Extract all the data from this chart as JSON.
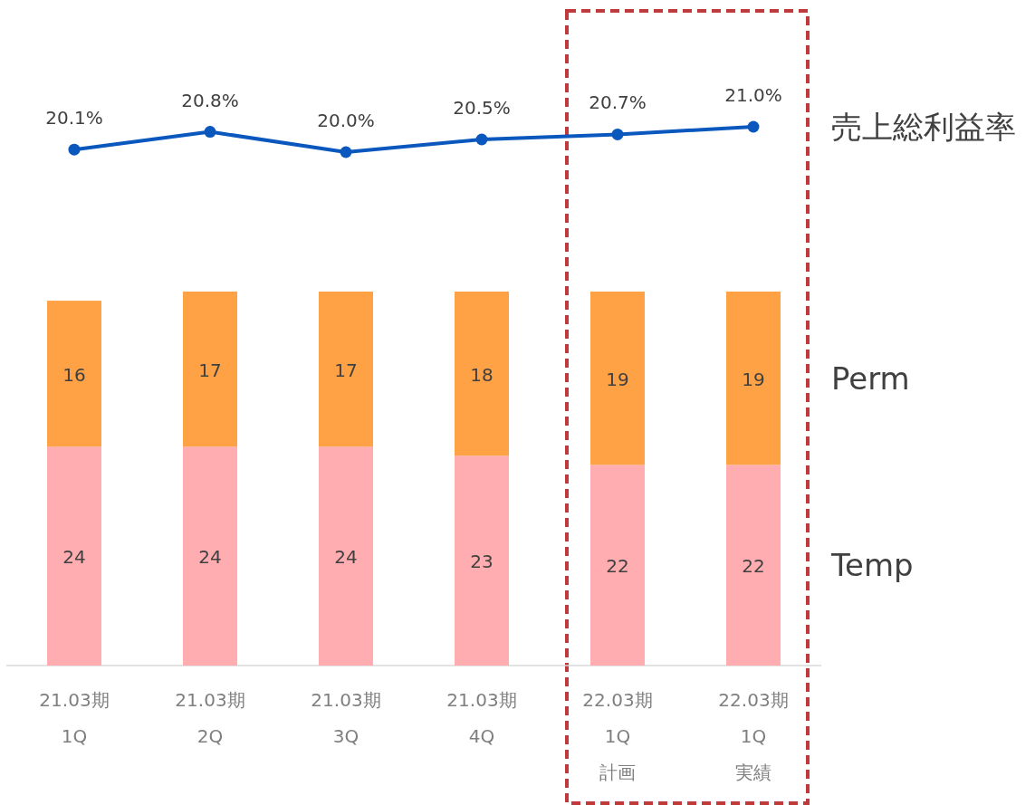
{
  "chart_data": [
    {
      "type": "line",
      "marker": "circle",
      "categories": [
        null,
        null,
        null,
        null,
        null,
        null
      ],
      "series": [
        {
          "name": "売上総利益率",
          "color": "#0a57bd",
          "values": [
            20.1,
            20.8,
            20.0,
            20.5,
            20.7,
            21.0
          ],
          "value_labels": [
            "20.1%",
            "20.8%",
            "20.0%",
            "20.5%",
            "20.7%",
            "21.0%"
          ]
        }
      ]
    },
    {
      "type": "bar",
      "stacked": true,
      "tick_labels": "x",
      "data_labels": true,
      "categories": [
        "21.03期\n1Q",
        "21.03期\n2Q",
        "21.03期\n3Q",
        "21.03期\n4Q",
        "22.03期\n1Q\n計画",
        "22.03期\n1Q\n実績"
      ],
      "ylim": [
        0,
        41
      ],
      "series": [
        {
          "name": "Temp",
          "color": "#ffadb0",
          "values": [
            24,
            24,
            24,
            23,
            22,
            22
          ]
        },
        {
          "name": "Perm",
          "color": "#ffa245",
          "values": [
            16,
            17,
            17,
            18,
            19,
            19
          ]
        }
      ]
    }
  ]
}
